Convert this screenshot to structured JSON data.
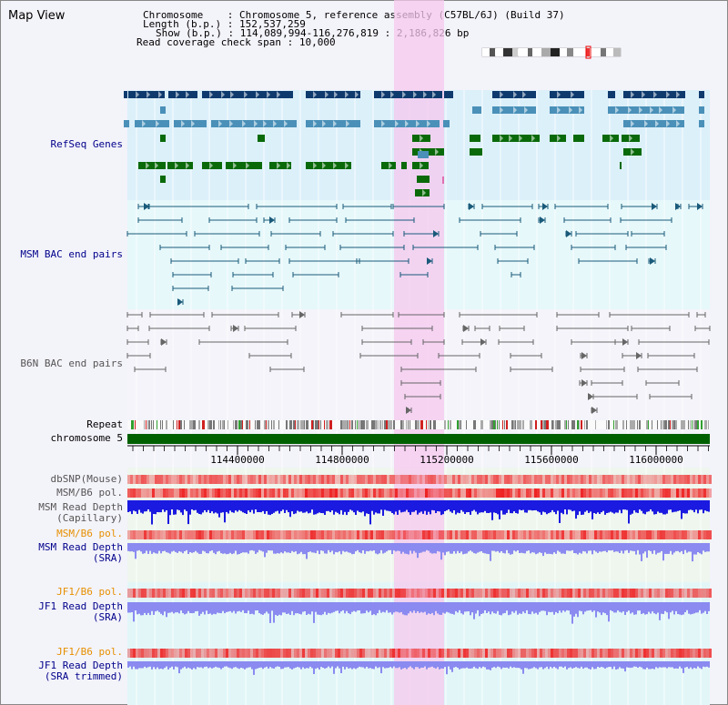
{
  "title": "Map View",
  "info": {
    "chromosome_label": "Chromosome",
    "chromosome_value": "Chromosome 5, reference assembly (C57BL/6J) (Build 37)",
    "length_label": "Length (b.p.)",
    "length_value": "152,537,259",
    "show_label": "Show (b.p.)",
    "show_value": "114,089,994-116,276,819 : 2,186,826 bp",
    "coverage_label": "Read coverage check span",
    "coverage_value": "10,000"
  },
  "tracks": {
    "refseq": "RefSeq Genes",
    "msm_bac": "MSM BAC end pairs",
    "b6n_bac": "B6N BAC end pairs",
    "repeat": "Repeat",
    "chromosome": "chromosome 5",
    "dbsnp": "dbSNP(Mouse)",
    "msm_b6_pol_1": "MSM/B6 pol.",
    "msm_depth_cap_1": "MSM Read Depth",
    "msm_depth_cap_2": "(Capillary)",
    "msm_b6_pol_2": "MSM/B6 pol.",
    "msm_depth_sra_1": "MSM Read Depth",
    "msm_depth_sra_2": "(SRA)",
    "jf1_b6_pol_1": "JF1/B6 pol.",
    "jf1_depth_sra_1": "JF1 Read Depth",
    "jf1_depth_sra_2": "(SRA)",
    "jf1_b6_pol_2": "JF1/B6 pol.",
    "jf1_depth_trim_1": "JF1 Read Depth",
    "jf1_depth_trim_2": "(SRA trimmed)"
  },
  "axis_ticks": [
    "114400000",
    "114800000",
    "115200000",
    "115600000",
    "116000000"
  ],
  "colors": {
    "refseq_dark": "#0e3a6e",
    "refseq_mid": "#4a90b8",
    "refseq_green": "#0a6a0a",
    "bac_msm": "#1a5a7a",
    "bac_b6n": "#666666",
    "highlight": "#f6c8ee",
    "depth_blue": "#1a1ae0",
    "depth_light": "#8a8af0",
    "snp_red": "#e84040"
  }
}
